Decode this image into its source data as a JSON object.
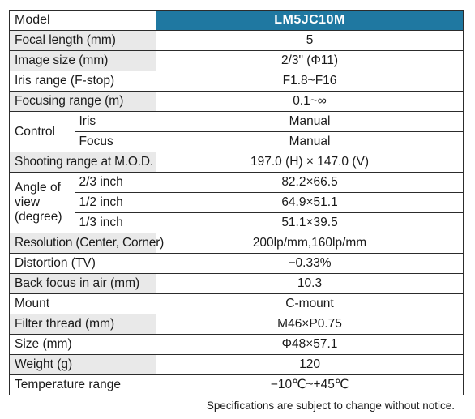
{
  "header": {
    "label": "Model",
    "value": "LM5JC10M"
  },
  "rows": {
    "focal_length": {
      "label": "Focal length (mm)",
      "value": "5"
    },
    "image_size": {
      "label": "Image size (mm)",
      "value": "2/3\" (Φ11)"
    },
    "iris_range": {
      "label": "Iris range (F-stop)",
      "value": "F1.8~F16"
    },
    "focusing_range": {
      "label": "Focusing range (m)",
      "value": "0.1~∞"
    },
    "control": {
      "label": "Control",
      "iris_label": "Iris",
      "iris_value": "Manual",
      "focus_label": "Focus",
      "focus_value": "Manual"
    },
    "shooting_range": {
      "label": "Shooting range at M.O.D.",
      "value": "197.0 (H) × 147.0 (V)"
    },
    "angle_of_view": {
      "label_line1": "Angle of",
      "label_line2": "view",
      "label_line3": "(degree)",
      "items": [
        {
          "size": "2/3 inch",
          "value": "82.2×66.5"
        },
        {
          "size": "1/2 inch",
          "value": "64.9×51.1"
        },
        {
          "size": "1/3 inch",
          "value": "51.1×39.5"
        }
      ]
    },
    "resolution": {
      "label": "Resolution (Center, Corner)",
      "value": "200lp/mm,160lp/mm"
    },
    "distortion": {
      "label": "Distortion (TV)",
      "value": "−0.33%"
    },
    "back_focus": {
      "label": "Back focus in air (mm)",
      "value": "10.3"
    },
    "mount": {
      "label": "Mount",
      "value": "C-mount"
    },
    "filter_thread": {
      "label": "Filter thread (mm)",
      "value": "M46×P0.75"
    },
    "size": {
      "label": "Size (mm)",
      "value": "Φ48×57.1"
    },
    "weight": {
      "label": "Weight (g)",
      "value": "120"
    },
    "temperature": {
      "label": "Temperature range",
      "value": "−10℃~+45℃"
    }
  },
  "footnote": "Specifications are subject to change without notice.",
  "colors": {
    "header_bg": "#1f78a1",
    "label_bg": "#e9e9e9",
    "border": "#2c2c2c"
  }
}
